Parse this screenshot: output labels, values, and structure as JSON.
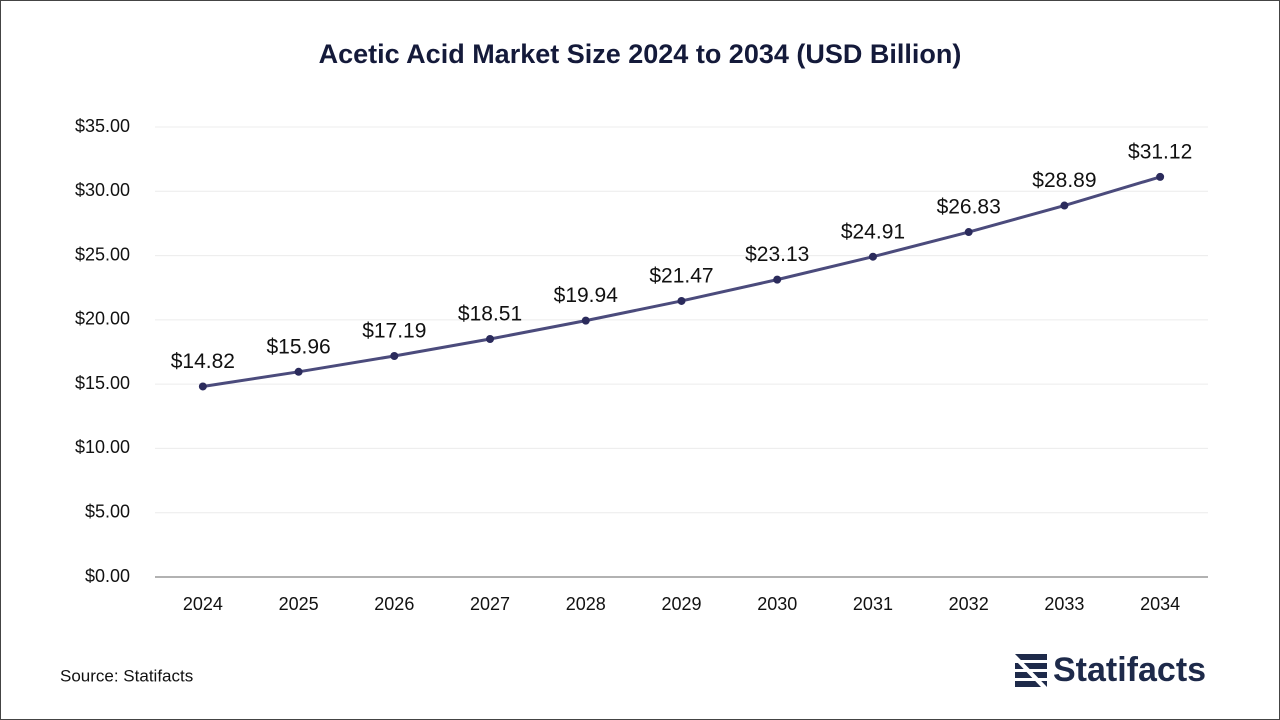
{
  "chart_data": {
    "type": "line",
    "title": "Acetic Acid Market Size 2024 to 2034 (USD Billion)",
    "categories": [
      "2024",
      "2025",
      "2026",
      "2027",
      "2028",
      "2029",
      "2030",
      "2031",
      "2032",
      "2033",
      "2034"
    ],
    "values": [
      14.82,
      15.96,
      17.19,
      18.51,
      19.94,
      21.47,
      23.13,
      24.91,
      26.83,
      28.89,
      31.12
    ],
    "value_labels": [
      "$14.82",
      "$15.96",
      "$17.19",
      "$18.51",
      "$19.94",
      "$21.47",
      "$23.13",
      "$24.91",
      "$26.83",
      "$28.89",
      "$31.12"
    ],
    "color": "#4b4b7c",
    "marker_color": "#2b2b5c",
    "ylim": [
      0,
      35
    ],
    "yticks": [
      {
        "value": 0,
        "label": "$0.00"
      },
      {
        "value": 5,
        "label": "$5.00"
      },
      {
        "value": 10,
        "label": "$10.00"
      },
      {
        "value": 15,
        "label": "$15.00"
      },
      {
        "value": 20,
        "label": "$20.00"
      },
      {
        "value": 25,
        "label": "$25.00"
      },
      {
        "value": 30,
        "label": "$30.00"
      },
      {
        "value": 35,
        "label": "$35.00"
      }
    ],
    "grid": true
  },
  "footer": {
    "source": "Source: Statifacts",
    "brand": "Statifacts"
  }
}
